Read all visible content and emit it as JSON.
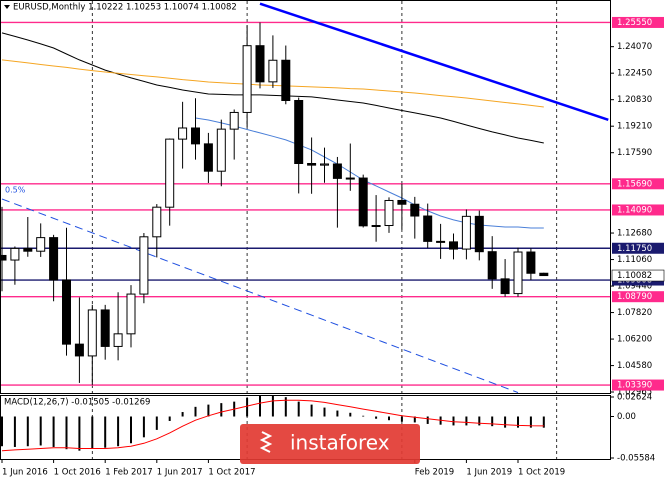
{
  "chart_data": [
    {
      "type": "candlestick",
      "title": "EURUSD,Monthly  1.10222 1.10253 1.10074 1.10082",
      "categories": [
        "1 Jun 2016",
        null,
        null,
        null,
        "1 Oct 2016",
        null,
        null,
        null,
        "1 Feb 2017",
        null,
        null,
        null,
        "1 Jun 2017",
        null,
        null,
        null,
        "1 Oct 2017",
        null,
        null,
        null,
        null,
        null,
        null,
        null,
        null,
        null,
        null,
        null,
        null,
        null,
        null,
        null,
        "Feb 2019",
        null,
        null,
        null,
        "1 Jun 2019",
        null,
        null,
        null,
        "1 Oct 2019",
        null,
        null
      ],
      "open": [
        1.1131,
        1.1103,
        1.1174,
        1.1157,
        1.124,
        1.0981,
        1.0589,
        1.0517,
        1.0798,
        1.0575,
        1.0652,
        1.0895,
        1.1245,
        1.1426,
        1.1842,
        1.191,
        1.1813,
        1.1646,
        1.1903,
        1.2005,
        1.2413,
        1.2192,
        1.2324,
        1.2078,
        1.1693,
        1.1683,
        1.169,
        1.1602,
        1.1604,
        1.1312,
        1.1314,
        1.1467,
        1.1444,
        1.1372,
        1.1217,
        1.1214,
        1.117,
        1.137,
        1.1154,
        1.0988,
        1.0898,
        1.1152,
        1.10222
      ],
      "high": [
        1.1428,
        1.1186,
        1.1366,
        1.1327,
        1.1257,
        1.13,
        1.0874,
        1.0829,
        1.0829,
        1.0906,
        1.095,
        1.1268,
        1.1445,
        1.1846,
        1.207,
        1.2092,
        1.188,
        1.1961,
        1.2023,
        1.2537,
        1.2555,
        1.2476,
        1.2414,
        1.2096,
        1.1852,
        1.179,
        1.1733,
        1.1815,
        1.1625,
        1.15,
        1.1486,
        1.157,
        1.1489,
        1.1448,
        1.1324,
        1.1265,
        1.1412,
        1.1405,
        1.1249,
        1.1109,
        1.1179,
        1.1175,
        1.10253
      ],
      "low": [
        1.0912,
        1.0952,
        1.1123,
        1.1122,
        1.0851,
        1.0519,
        1.0352,
        1.034,
        1.0494,
        1.049,
        1.0569,
        1.0839,
        1.1119,
        1.1313,
        1.1662,
        1.1717,
        1.1574,
        1.1554,
        1.1717,
        1.1915,
        1.2152,
        1.2155,
        1.2055,
        1.151,
        1.1508,
        1.1575,
        1.1301,
        1.1526,
        1.1302,
        1.1215,
        1.1269,
        1.1289,
        1.1234,
        1.1176,
        1.111,
        1.1107,
        1.1107,
        1.1101,
        1.0927,
        1.0879,
        1.0879,
        1.0981,
        1.10074
      ],
      "close": [
        1.1103,
        1.1174,
        1.1157,
        1.124,
        1.0981,
        1.0589,
        1.0517,
        1.0798,
        1.0575,
        1.0652,
        1.0895,
        1.1245,
        1.1426,
        1.1842,
        1.191,
        1.1813,
        1.1646,
        1.1903,
        1.2005,
        1.2413,
        1.2192,
        1.2324,
        1.2078,
        1.1693,
        1.1683,
        1.169,
        1.1602,
        1.1604,
        1.1312,
        1.1314,
        1.1467,
        1.1444,
        1.1372,
        1.1217,
        1.1214,
        1.117,
        1.137,
        1.1154,
        1.0988,
        1.0898,
        1.1152,
        1.10222,
        1.10082
      ],
      "up_color": "#ffffff",
      "down_color": "#000000",
      "series": [
        {
          "color": "#000000",
          "values": [
            1.2491,
            1.247,
            1.2448,
            1.2424,
            1.2399,
            1.2362,
            1.2326,
            1.2295,
            1.2264,
            1.224,
            1.2216,
            1.2195,
            1.2173,
            1.2158,
            1.2142,
            1.213,
            1.2118,
            1.2115,
            1.2112,
            1.2112,
            1.2112,
            1.2109,
            1.2106,
            1.2103,
            1.21,
            1.2091,
            1.2081,
            1.2072,
            1.2063,
            1.2048,
            1.2032,
            1.2017,
            1.2002,
            1.1987,
            1.1971,
            1.195,
            1.1928,
            1.1907,
            1.1886,
            1.1868,
            1.1849,
            1.1834,
            1.1818
          ]
        },
        {
          "color": "#f5a623",
          "values": [
            1.2326,
            1.2317,
            1.2308,
            1.2298,
            1.2289,
            1.228,
            1.227,
            1.2261,
            1.2252,
            1.2244,
            1.2237,
            1.2229,
            1.2222,
            1.2214,
            1.2206,
            1.2199,
            1.2191,
            1.2187,
            1.2182,
            1.2178,
            1.2173,
            1.217,
            1.2167,
            1.2164,
            1.2161,
            1.2158,
            1.2155,
            1.2151,
            1.2148,
            1.2142,
            1.2136,
            1.213,
            1.2124,
            1.2116,
            1.2108,
            1.2101,
            1.2093,
            1.2084,
            1.2075,
            1.2066,
            1.2057,
            1.2048,
            1.2038
          ]
        },
        {
          "color": "#4a7fd8",
          "values": [
            null,
            null,
            null,
            null,
            null,
            null,
            null,
            null,
            null,
            null,
            null,
            null,
            null,
            null,
            null,
            1.1971,
            1.1959,
            1.1941,
            1.1922,
            1.1901,
            1.188,
            1.1859,
            1.1837,
            1.1807,
            1.1776,
            1.1733,
            1.169,
            1.1641,
            1.1592,
            1.1556,
            1.1519,
            1.1482,
            1.144,
            1.1403,
            1.1372,
            1.1348,
            1.133,
            1.1317,
            1.1311,
            1.1305,
            1.1305,
            1.1299,
            1.1299
          ]
        }
      ],
      "trendlines": [
        {
          "color": "#0000ff",
          "style": "solid",
          "points": [
            [
              20,
              1.267
            ],
            [
              47,
              1.196
            ]
          ]
        },
        {
          "color": "#2050e0",
          "style": "dashed",
          "label": "0.5%",
          "points": [
            [
              0,
              1.1476
            ],
            [
              40,
              1.0293
            ]
          ]
        }
      ],
      "levels": [
        {
          "value": 1.2555,
          "label": "1.25550",
          "color": "#ff2a8c"
        },
        {
          "value": 1.1569,
          "label": "1.15690",
          "color": "#ff2a8c"
        },
        {
          "value": 1.1409,
          "label": "1.14090",
          "color": "#ff2a8c"
        },
        {
          "value": 1.1175,
          "label": "1.11750",
          "color": "#1a1a6e"
        },
        {
          "value": 1.09808,
          "label": "1.09808",
          "color": "#1a1a6e"
        },
        {
          "value": 1.0879,
          "label": "1.08790",
          "color": "#ff2a8c"
        },
        {
          "value": 1.0339,
          "label": "1.03390",
          "color": "#ff2a8c"
        }
      ],
      "price": {
        "value": 1.10082,
        "label": "1.10082"
      },
      "ylim": [
        1.02965,
        1.268
      ],
      "yticks": [
        {
          "value": 1.2407,
          "label": "1.24070"
        },
        {
          "value": 1.2245,
          "label": "1.22450"
        },
        {
          "value": 1.2083,
          "label": "1.20830"
        },
        {
          "value": 1.1921,
          "label": "1.19210"
        },
        {
          "value": 1.1759,
          "label": "1.17590"
        },
        {
          "value": 1.1268,
          "label": "1.12680"
        },
        {
          "value": 1.1106,
          "label": "1.11060"
        },
        {
          "value": 1.0944,
          "label": "1.09440"
        },
        {
          "value": 1.0782,
          "label": "1.07820"
        },
        {
          "value": 1.062,
          "label": "1.06200"
        },
        {
          "value": 1.0458,
          "label": "1.04580"
        },
        1.02965
      ],
      "xgrid": [
        7,
        19,
        31,
        43
      ]
    },
    {
      "type": "macd",
      "title": "MACD(12,26,7) -0.01505 -0.01269",
      "values": [
        -0.04,
        -0.041,
        -0.04,
        -0.039,
        -0.041,
        -0.044,
        -0.046,
        -0.043,
        -0.042,
        -0.04,
        -0.036,
        -0.028,
        -0.018,
        -0.006,
        0.006,
        0.013,
        0.016,
        0.018,
        0.02,
        0.025,
        0.028,
        0.028,
        0.026,
        0.02,
        0.016,
        0.012,
        0.008,
        0.005,
        0.001,
        -0.003,
        -0.005,
        -0.007,
        -0.008,
        -0.01,
        -0.011,
        -0.012,
        -0.012,
        -0.012,
        -0.013,
        -0.015,
        -0.015,
        -0.015,
        -0.01505
      ],
      "color": "#000000",
      "signal": {
        "color": "#ff0000",
        "values": [
          -0.046,
          -0.045,
          -0.044,
          -0.043,
          -0.042,
          -0.042,
          -0.043,
          -0.043,
          -0.043,
          -0.042,
          -0.04,
          -0.036,
          -0.03,
          -0.022,
          -0.013,
          -0.005,
          0.001,
          0.006,
          0.01,
          0.014,
          0.018,
          0.021,
          0.022,
          0.022,
          0.021,
          0.019,
          0.016,
          0.013,
          0.01,
          0.007,
          0.004,
          0.001,
          -0.001,
          -0.003,
          -0.005,
          -0.007,
          -0.008,
          -0.009,
          -0.01,
          -0.011,
          -0.012,
          -0.0125,
          -0.01269
        ]
      },
      "ylim": [
        -0.05584,
        0.02624
      ],
      "yticks": [
        0.02624,
        {
          "value": 0,
          "label": "0.00"
        },
        -0.05584
      ]
    }
  ],
  "watermark": "instaforex"
}
